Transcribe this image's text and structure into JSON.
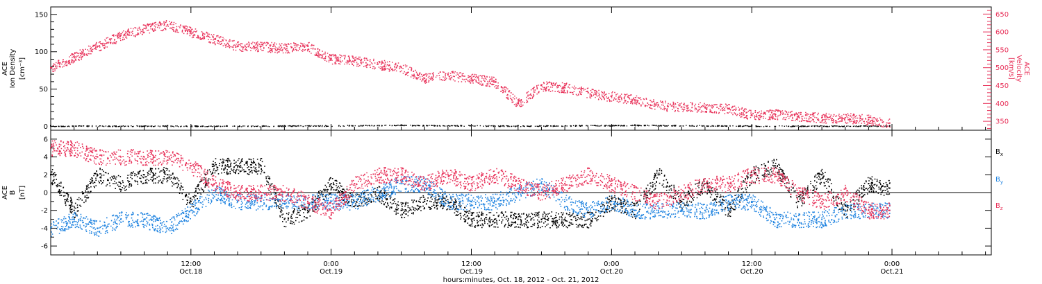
{
  "chart_data": [
    {
      "type": "scatter",
      "panel": "top",
      "ylabel_lines": [
        "ACE",
        "Ion Density",
        "[cm⁻³]"
      ],
      "ylim": [
        -5,
        160
      ],
      "yticks": [
        0,
        50,
        100,
        150
      ],
      "y2label_lines": [
        "ACE",
        "Velocity",
        "[km/s]"
      ],
      "y2lim": [
        325,
        670
      ],
      "y2ticks": [
        350,
        400,
        450,
        500,
        550,
        600,
        650
      ],
      "series": [
        {
          "axis": "right",
          "color": "#e8325a",
          "x": [
            0,
            2,
            4,
            6,
            8,
            10,
            12,
            14,
            16,
            18,
            20,
            22,
            24,
            26,
            28,
            30,
            32,
            34,
            36,
            38,
            40,
            42,
            44,
            46,
            48,
            50,
            52,
            54,
            56,
            58,
            60,
            62,
            64,
            66,
            68,
            70,
            71.8
          ],
          "values": [
            500,
            530,
            560,
            590,
            610,
            620,
            600,
            580,
            560,
            560,
            555,
            560,
            525,
            520,
            510,
            500,
            470,
            480,
            470,
            460,
            400,
            450,
            445,
            430,
            420,
            410,
            395,
            390,
            390,
            385,
            368,
            370,
            365,
            360,
            360,
            355,
            345
          ]
        },
        {
          "axis": "left",
          "color": "#000000",
          "x": [
            0,
            10,
            20,
            30,
            40,
            50,
            60,
            71.8
          ],
          "values": [
            1,
            1,
            1,
            2,
            1,
            2,
            1,
            1
          ]
        }
      ]
    },
    {
      "type": "scatter",
      "panel": "bottom",
      "ylabel_lines": [
        "ACE",
        "B",
        "[nT]"
      ],
      "ylim": [
        -7,
        7
      ],
      "yticks": [
        -6,
        -4,
        -2,
        0,
        2,
        4,
        6
      ],
      "series": [
        {
          "name": "Bx",
          "label": "B",
          "sub": "x",
          "color": "#000000",
          "x": [
            0,
            2,
            4,
            6,
            8,
            10,
            12,
            14,
            16,
            18,
            20,
            22,
            24,
            26,
            28,
            30,
            32,
            34,
            36,
            38,
            40,
            42,
            44,
            46,
            48,
            50,
            52,
            54,
            56,
            58,
            60,
            62,
            64,
            66,
            68,
            70,
            71.8
          ],
          "values": [
            2,
            -2,
            2,
            1,
            2,
            2,
            -1,
            3,
            3,
            3,
            -3,
            -2,
            1,
            -1,
            0,
            -2,
            -1,
            -1,
            -3,
            -3,
            -3,
            -3,
            -3,
            -3,
            -1,
            -2,
            2,
            -1,
            1,
            -2,
            2,
            3,
            -1,
            2,
            -2,
            1,
            0.5
          ]
        },
        {
          "name": "By",
          "label": "B",
          "sub": "y",
          "color": "#1f83e0",
          "x": [
            0,
            2,
            4,
            6,
            8,
            10,
            12,
            14,
            16,
            18,
            20,
            22,
            24,
            26,
            28,
            30,
            32,
            34,
            36,
            38,
            40,
            42,
            44,
            46,
            48,
            50,
            52,
            54,
            56,
            58,
            60,
            62,
            64,
            66,
            68,
            70,
            71.8
          ],
          "values": [
            -4,
            -3,
            -4,
            -3,
            -3,
            -4,
            -2,
            0,
            -1,
            -1,
            -1,
            -1,
            -1,
            -1,
            0,
            1,
            1,
            -1,
            -1,
            -1,
            0,
            1,
            -1,
            -2,
            -1,
            -2,
            -2,
            -2,
            -2,
            -1,
            -1,
            -3,
            -3,
            -3,
            -2,
            -2,
            -2
          ]
        },
        {
          "name": "Bz",
          "label": "B",
          "sub": "z",
          "color": "#e8325a",
          "x": [
            0,
            2,
            4,
            6,
            8,
            10,
            12,
            14,
            16,
            18,
            20,
            22,
            24,
            26,
            28,
            30,
            32,
            34,
            36,
            38,
            40,
            42,
            44,
            46,
            48,
            50,
            52,
            54,
            56,
            58,
            60,
            62,
            64,
            66,
            68,
            70,
            71.8
          ],
          "values": [
            5,
            5,
            4,
            4,
            4,
            4,
            3,
            1,
            0,
            0,
            0,
            -1,
            -2,
            1,
            2,
            2,
            1,
            2,
            1,
            2,
            1,
            0,
            1,
            2,
            1,
            0,
            -1,
            0,
            1,
            1,
            2,
            2,
            0,
            -1,
            0,
            -2,
            -2
          ]
        }
      ]
    }
  ],
  "x_axis": {
    "xlim": [
      0,
      80.5
    ],
    "ticks": [
      {
        "x": 12,
        "time": "12:00",
        "date": "Oct.18"
      },
      {
        "x": 24,
        "time": "0:00",
        "date": "Oct.19"
      },
      {
        "x": 36,
        "time": "12:00",
        "date": "Oct.19"
      },
      {
        "x": 48,
        "time": "0:00",
        "date": "Oct.20"
      },
      {
        "x": 60,
        "time": "12:00",
        "date": "Oct.20"
      },
      {
        "x": 72,
        "time": "0:00",
        "date": "Oct.21"
      }
    ],
    "xlabel": "hours:minutes, Oct. 18, 2012 - Oct. 21, 2012"
  }
}
